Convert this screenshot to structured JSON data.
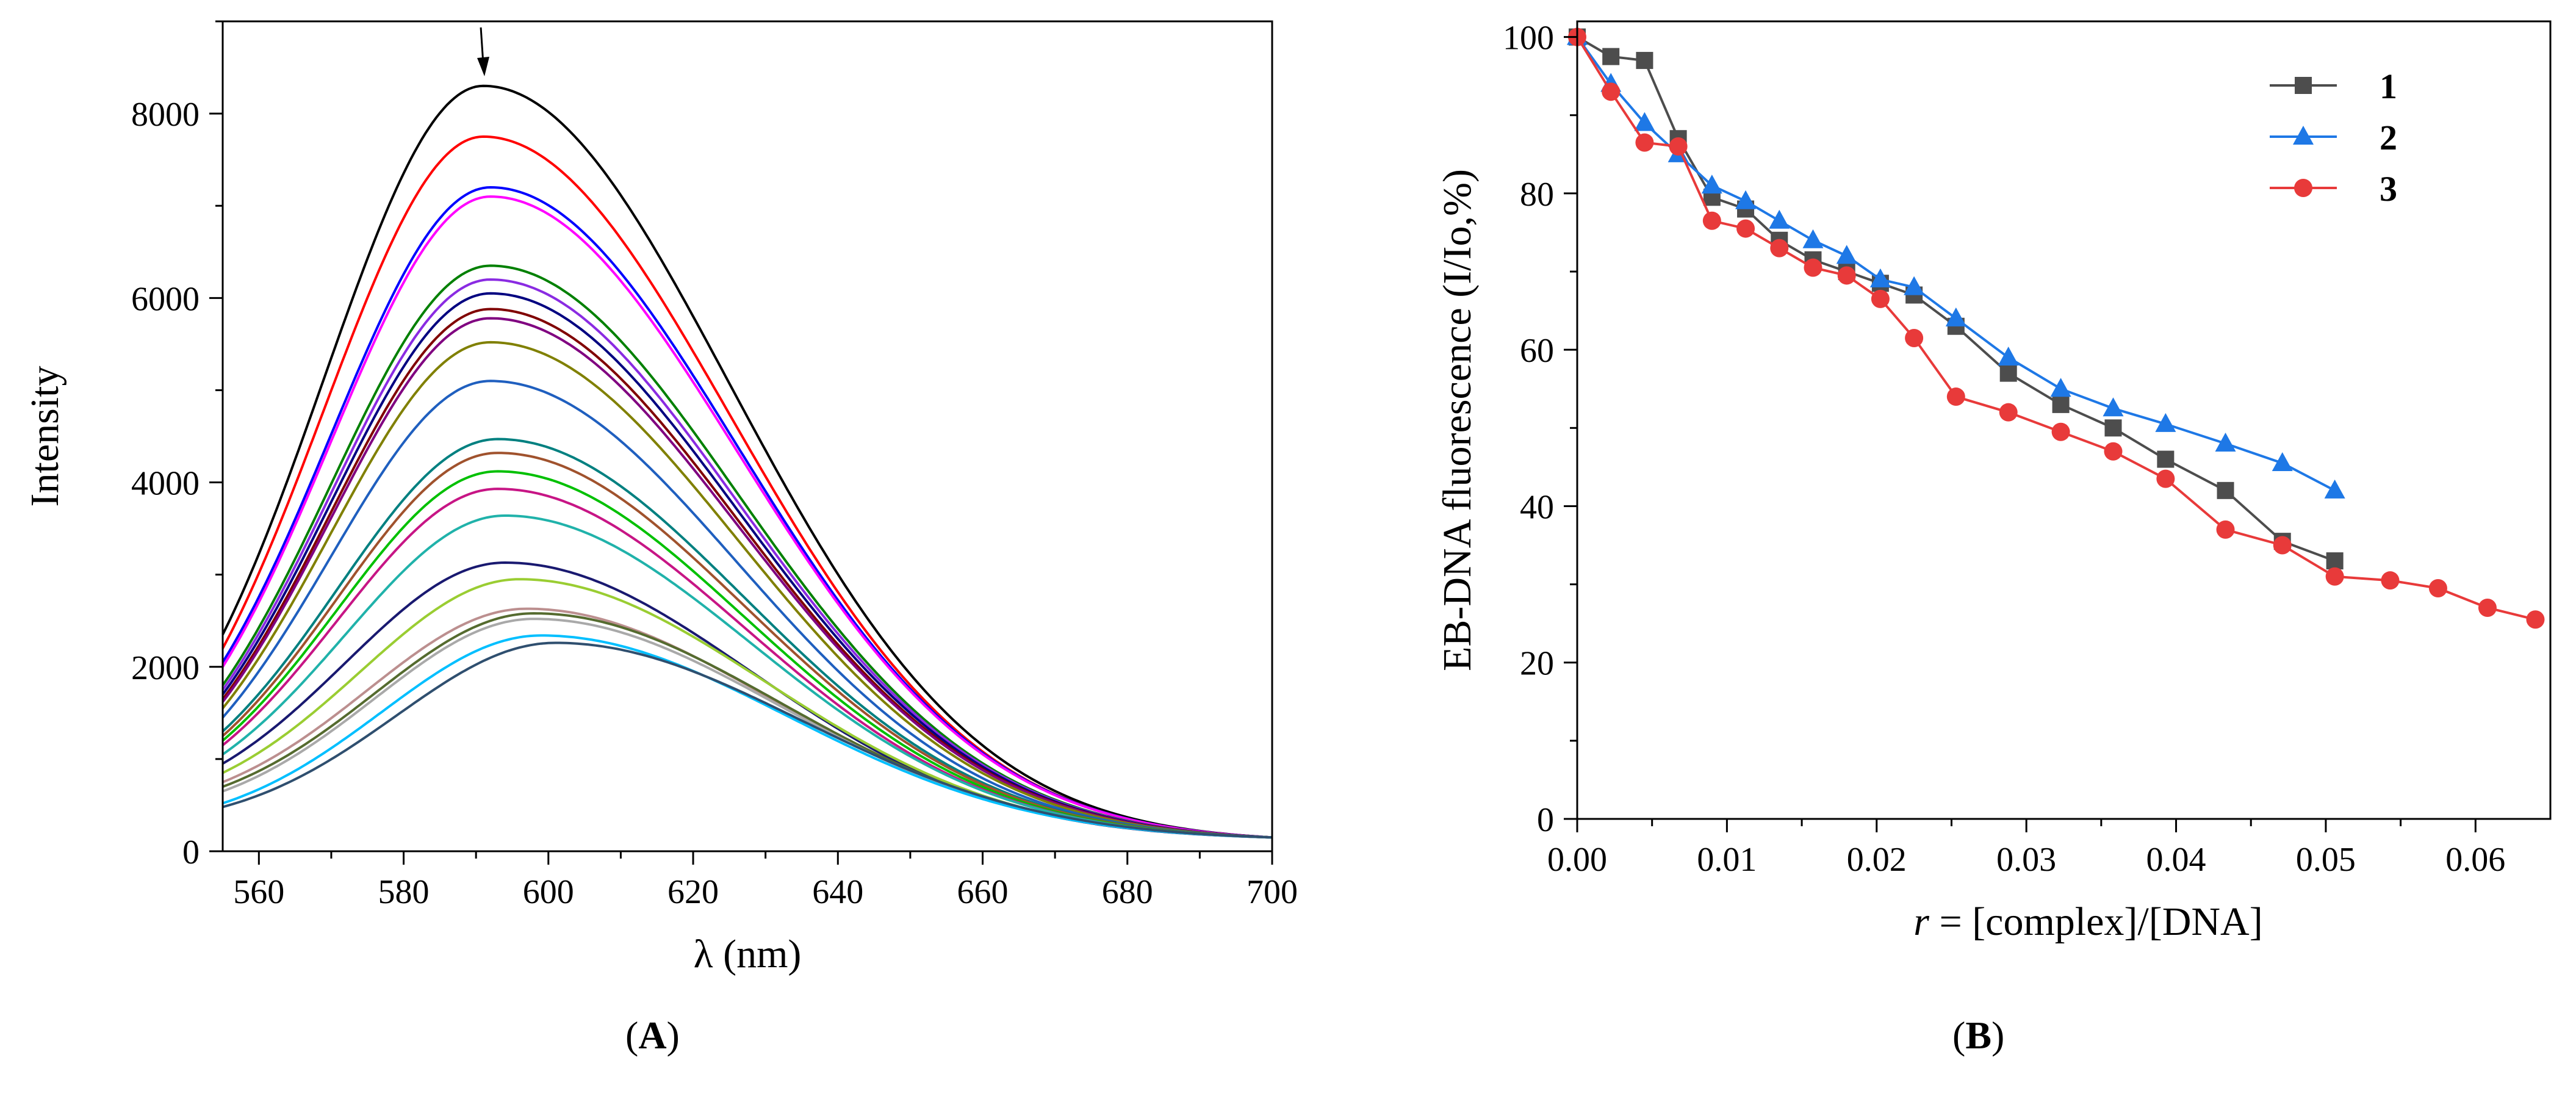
{
  "panels": {
    "A": {
      "label": "A"
    },
    "B": {
      "label": "B"
    }
  },
  "chart_data": [
    {
      "type": "line",
      "panel": "A",
      "xlabel": "λ (nm)",
      "ylabel": "Intensity",
      "xlim": [
        555,
        700
      ],
      "ylim": [
        0,
        9000
      ],
      "xticks": [
        560,
        580,
        600,
        620,
        640,
        660,
        680,
        700
      ],
      "yticks": [
        0,
        2000,
        4000,
        6000,
        8000
      ],
      "annotation": "arrow at peak (~591 nm) pointing down",
      "curve_end_value_at_700": 150,
      "series": [
        {
          "color": "#000000",
          "peak_x": 591,
          "peak_y": 8300,
          "start_y": 2350
        },
        {
          "color": "#ff0000",
          "peak_x": 591,
          "peak_y": 7750,
          "start_y": 2200
        },
        {
          "color": "#0000ff",
          "peak_x": 592,
          "peak_y": 7200,
          "start_y": 2050
        },
        {
          "color": "#ff00ff",
          "peak_x": 592,
          "peak_y": 7100,
          "start_y": 2000
        },
        {
          "color": "#008000",
          "peak_x": 592,
          "peak_y": 6350,
          "start_y": 1800
        },
        {
          "color": "#8a2be2",
          "peak_x": 592,
          "peak_y": 6200,
          "start_y": 1750
        },
        {
          "color": "#000080",
          "peak_x": 592,
          "peak_y": 6050,
          "start_y": 1700
        },
        {
          "color": "#800000",
          "peak_x": 592,
          "peak_y": 5880,
          "start_y": 1650
        },
        {
          "color": "#800080",
          "peak_x": 592,
          "peak_y": 5780,
          "start_y": 1620
        },
        {
          "color": "#808000",
          "peak_x": 592,
          "peak_y": 5520,
          "start_y": 1550
        },
        {
          "color": "#1f5fbf",
          "peak_x": 592,
          "peak_y": 5100,
          "start_y": 1450
        },
        {
          "color": "#008080",
          "peak_x": 593,
          "peak_y": 4470,
          "start_y": 1300
        },
        {
          "color": "#a0522d",
          "peak_x": 593,
          "peak_y": 4320,
          "start_y": 1250
        },
        {
          "color": "#00c000",
          "peak_x": 593,
          "peak_y": 4120,
          "start_y": 1200
        },
        {
          "color": "#c71585",
          "peak_x": 593,
          "peak_y": 3930,
          "start_y": 1150
        },
        {
          "color": "#20b2aa",
          "peak_x": 594,
          "peak_y": 3640,
          "start_y": 1050
        },
        {
          "color": "#191970",
          "peak_x": 594,
          "peak_y": 3130,
          "start_y": 950
        },
        {
          "color": "#9acd32",
          "peak_x": 596,
          "peak_y": 2950,
          "start_y": 850
        },
        {
          "color": "#bc8f8f",
          "peak_x": 597,
          "peak_y": 2630,
          "start_y": 750
        },
        {
          "color": "#556b2f",
          "peak_x": 598,
          "peak_y": 2580,
          "start_y": 700
        },
        {
          "color": "#a9a9a9",
          "peak_x": 598,
          "peak_y": 2520,
          "start_y": 650
        },
        {
          "color": "#00bfff",
          "peak_x": 599,
          "peak_y": 2340,
          "start_y": 520
        },
        {
          "color": "#2f4f6f",
          "peak_x": 601,
          "peak_y": 2260,
          "start_y": 480
        }
      ]
    },
    {
      "type": "line",
      "panel": "B",
      "xlabel": "r = [complex]/[DNA]",
      "xlabel_italic_part": "r",
      "xlabel_rest": " = [complex]/[DNA]",
      "ylabel": "EB-DNA fluorescence (I/Io,%)",
      "xlim": [
        0,
        0.065
      ],
      "ylim": [
        0,
        102
      ],
      "xticks": [
        "0.00",
        "0.01",
        "0.02",
        "0.03",
        "0.04",
        "0.05",
        "0.06"
      ],
      "yticks": [
        0,
        20,
        40,
        60,
        80,
        100
      ],
      "legend_position": "top-right",
      "series": [
        {
          "name": "1",
          "color": "#4d4d4d",
          "marker": "square",
          "x": [
            0,
            0.00225,
            0.0045,
            0.00675,
            0.009,
            0.01125,
            0.0135,
            0.01575,
            0.018,
            0.02025,
            0.0225,
            0.0253,
            0.0288,
            0.0323,
            0.0358,
            0.0393,
            0.0433,
            0.0471,
            0.0506
          ],
          "y": [
            100,
            97.5,
            97,
            87,
            79.5,
            78,
            74,
            71.5,
            70,
            68.5,
            67,
            63,
            57,
            53,
            50,
            46,
            42,
            35.5,
            33
          ]
        },
        {
          "name": "2",
          "color": "#1e78e6",
          "marker": "triangle",
          "x": [
            0,
            0.00225,
            0.0045,
            0.00675,
            0.009,
            0.01125,
            0.0135,
            0.01575,
            0.018,
            0.02025,
            0.0225,
            0.0253,
            0.0288,
            0.0323,
            0.0358,
            0.0393,
            0.0433,
            0.0471,
            0.0506
          ],
          "y": [
            100,
            94,
            89,
            85,
            81,
            79,
            76.5,
            74,
            72,
            69,
            68,
            64,
            59,
            55,
            52.5,
            50.5,
            48,
            45.5,
            42
          ]
        },
        {
          "name": "3",
          "color": "#e83a3a",
          "marker": "circle",
          "x": [
            0,
            0.00225,
            0.0045,
            0.00675,
            0.009,
            0.01125,
            0.0135,
            0.01575,
            0.018,
            0.02025,
            0.0225,
            0.0253,
            0.0288,
            0.0323,
            0.0358,
            0.0393,
            0.0433,
            0.0471,
            0.0506,
            0.0543,
            0.0575,
            0.0608,
            0.064
          ],
          "y": [
            100,
            93,
            86.5,
            86,
            76.5,
            75.5,
            73,
            70.5,
            69.5,
            66.5,
            61.5,
            54,
            52,
            49.5,
            47,
            43.5,
            37,
            35,
            31,
            30.5,
            29.5,
            27,
            25.5
          ]
        }
      ]
    }
  ]
}
